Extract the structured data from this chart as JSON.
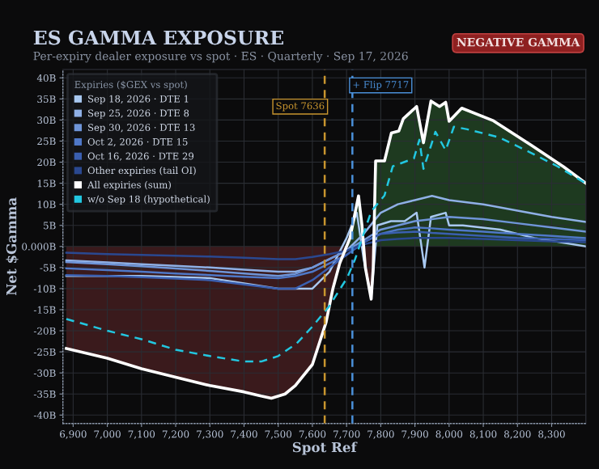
{
  "chart_data": {
    "type": "line",
    "title": "ES GAMMA EXPOSURE",
    "subtitle": "Per-expiry dealer exposure vs spot · ES · Quarterly · Sep 17, 2026",
    "xlabel": "Spot Ref",
    "ylabel": "Net $Gamma",
    "legend_title": "Expiries ($GEX vs spot)",
    "annotations": [
      "NEGATIVE GAMMA"
    ],
    "x": [
      6880,
      7000,
      7100,
      7200,
      7300,
      7400,
      7500,
      7550,
      7600,
      7650,
      7700,
      7750,
      7800,
      7850,
      7900,
      7950,
      8000,
      8100,
      8200,
      8300,
      8400
    ],
    "series": [
      {
        "name": "Sep 18, 2026 · DTE 1",
        "color": "#a8c8f0",
        "x": [
          6880,
          7100,
          7300,
          7500,
          7600,
          7650,
          7700,
          7730,
          7750,
          7772,
          7790,
          7830,
          7870,
          7905,
          7928,
          7947,
          7990,
          8000,
          8040,
          8150,
          8250,
          8400
        ],
        "values": [
          -7,
          -7,
          -7.5,
          -10,
          -10,
          -6,
          2,
          8,
          -3,
          -12,
          5,
          6,
          6,
          8,
          -5,
          7,
          8,
          5,
          5,
          4,
          2,
          0
        ]
      },
      {
        "name": "Sep 25, 2026 · DTE 8",
        "color": "#8fb0e6",
        "values": [
          -3.3,
          -3.8,
          -4.2,
          -4.6,
          -5,
          -5.5,
          -6,
          -6,
          -5,
          -3,
          -1,
          3,
          8,
          10,
          11,
          12,
          11,
          10,
          8.5,
          7,
          5.8
        ]
      },
      {
        "name": "Sep 30, 2026 · DTE 13",
        "color": "#6f95d8",
        "values": [
          -3.7,
          -4.2,
          -4.7,
          -5.2,
          -5.8,
          -6.4,
          -7,
          -6.5,
          -5,
          -3,
          -1,
          1.5,
          4,
          5,
          6,
          6.5,
          7,
          6.5,
          5.5,
          4.5,
          3.5
        ]
      },
      {
        "name": "Oct 2, 2026 · DTE 15",
        "color": "#4f78c8",
        "values": [
          -5.2,
          -5.6,
          -6,
          -6.4,
          -6.8,
          -7.2,
          -7.5,
          -7,
          -6,
          -4,
          -2,
          1,
          3,
          4,
          4.5,
          4.3,
          4,
          3.5,
          3,
          2.5,
          2
        ]
      },
      {
        "name": "Oct 16, 2026 · DTE 29",
        "color": "#3a5fb0",
        "values": [
          -6.8,
          -7,
          -7.3,
          -7.6,
          -8,
          -9,
          -10,
          -10,
          -8,
          -5,
          -2,
          1,
          3,
          3.3,
          3.5,
          3.2,
          3,
          2.5,
          2,
          1.8,
          1.5
        ]
      },
      {
        "name": "Other expiries (tail OI)",
        "color": "#2a4890",
        "values": [
          -1.5,
          -1.8,
          -2,
          -2.2,
          -2.4,
          -2.7,
          -3,
          -3,
          -2.5,
          -1.8,
          -1,
          0.5,
          1.5,
          1.8,
          2,
          2,
          2,
          1.8,
          1.5,
          1.2,
          1
        ]
      },
      {
        "name": "All expiries (sum)",
        "type": "area",
        "color": "#ffffff",
        "x": [
          6880,
          7000,
          7100,
          7200,
          7300,
          7400,
          7450,
          7480,
          7520,
          7550,
          7600,
          7640,
          7660,
          7680,
          7700,
          7710,
          7725,
          7735,
          7745,
          7755,
          7772,
          7778,
          7785,
          7811,
          7831,
          7853,
          7866,
          7905,
          7925,
          7947,
          7972,
          7990,
          8000,
          8037,
          8130,
          8241,
          8335,
          8400
        ],
        "values": [
          -24.2,
          -26.5,
          -29,
          -31,
          -33,
          -34.5,
          -35.5,
          -36,
          -35,
          -33,
          -28,
          -18,
          -10,
          -4,
          0,
          2,
          8,
          12,
          5,
          -5,
          -12.5,
          -5,
          20.3,
          20.3,
          26.9,
          27.4,
          30.3,
          33.2,
          24.6,
          34.5,
          33.2,
          34.2,
          29.7,
          32.8,
          29.8,
          24,
          18.9,
          15
        ]
      },
      {
        "name": "w/o Sep 18 (hypothetical)",
        "color": "#22c7e0",
        "line_style": "dashed",
        "x": [
          6880,
          7000,
          7100,
          7200,
          7300,
          7400,
          7450,
          7500,
          7554,
          7600,
          7648,
          7702,
          7725,
          7772,
          7811,
          7835,
          7897,
          7913,
          7925,
          7960,
          7990,
          8014,
          8053,
          8146,
          8240,
          8317,
          8395
        ],
        "values": [
          -17.2,
          -20,
          -22,
          -24.5,
          -26,
          -27.3,
          -27.3,
          -26,
          -23,
          -19,
          -14.3,
          -7.4,
          -3,
          8.3,
          12.1,
          19,
          20.9,
          25.3,
          18.4,
          27.2,
          22.8,
          28.4,
          27.8,
          25.9,
          22.2,
          19,
          15.2
        ]
      }
    ],
    "ref_lines": [
      {
        "axis": "x",
        "value": 7636,
        "label": "Spot 7636",
        "color": "#c8952e",
        "line_style": "dashed"
      },
      {
        "axis": "x",
        "value": 7717,
        "label": "+ Flip 7717",
        "color": "#4a90d9",
        "line_style": "dashed"
      }
    ],
    "xlim": [
      6870,
      8400
    ],
    "ylim": [
      -42,
      42
    ],
    "xticks": [
      {
        "value": 6900,
        "label": "6,900"
      },
      {
        "value": 7000,
        "label": "7,000"
      },
      {
        "value": 7100,
        "label": "7,100"
      },
      {
        "value": 7200,
        "label": "7,200"
      },
      {
        "value": 7300,
        "label": "7,300"
      },
      {
        "value": 7400,
        "label": "7,400"
      },
      {
        "value": 7500,
        "label": "7,500"
      },
      {
        "value": 7600,
        "label": "7,600"
      },
      {
        "value": 7700,
        "label": "7,700"
      },
      {
        "value": 7800,
        "label": "7,800"
      },
      {
        "value": 7900,
        "label": "7,900"
      },
      {
        "value": 8000,
        "label": "8,000"
      },
      {
        "value": 8100,
        "label": "8,100"
      },
      {
        "value": 8200,
        "label": "8,200"
      },
      {
        "value": 8300,
        "label": "8,300"
      }
    ],
    "yticks": [
      {
        "value": 40,
        "label": "40B"
      },
      {
        "value": 35,
        "label": "35B"
      },
      {
        "value": 30,
        "label": "30B"
      },
      {
        "value": 25,
        "label": "25B"
      },
      {
        "value": 20,
        "label": "20B"
      },
      {
        "value": 15,
        "label": "15B"
      },
      {
        "value": 10,
        "label": "10B"
      },
      {
        "value": 5,
        "label": "5B"
      },
      {
        "value": 0,
        "label": "0.000B"
      },
      {
        "value": -5,
        "label": "-5B"
      },
      {
        "value": -10,
        "label": "-10B"
      },
      {
        "value": -15,
        "label": "-15B"
      },
      {
        "value": -20,
        "label": "-20B"
      },
      {
        "value": -25,
        "label": "-25B"
      },
      {
        "value": -30,
        "label": "-30B"
      },
      {
        "value": -35,
        "label": "-35B"
      },
      {
        "value": -40,
        "label": "-40B"
      }
    ],
    "grid": true,
    "legend": "top left",
    "marker": "none",
    "line_style": "solid"
  }
}
